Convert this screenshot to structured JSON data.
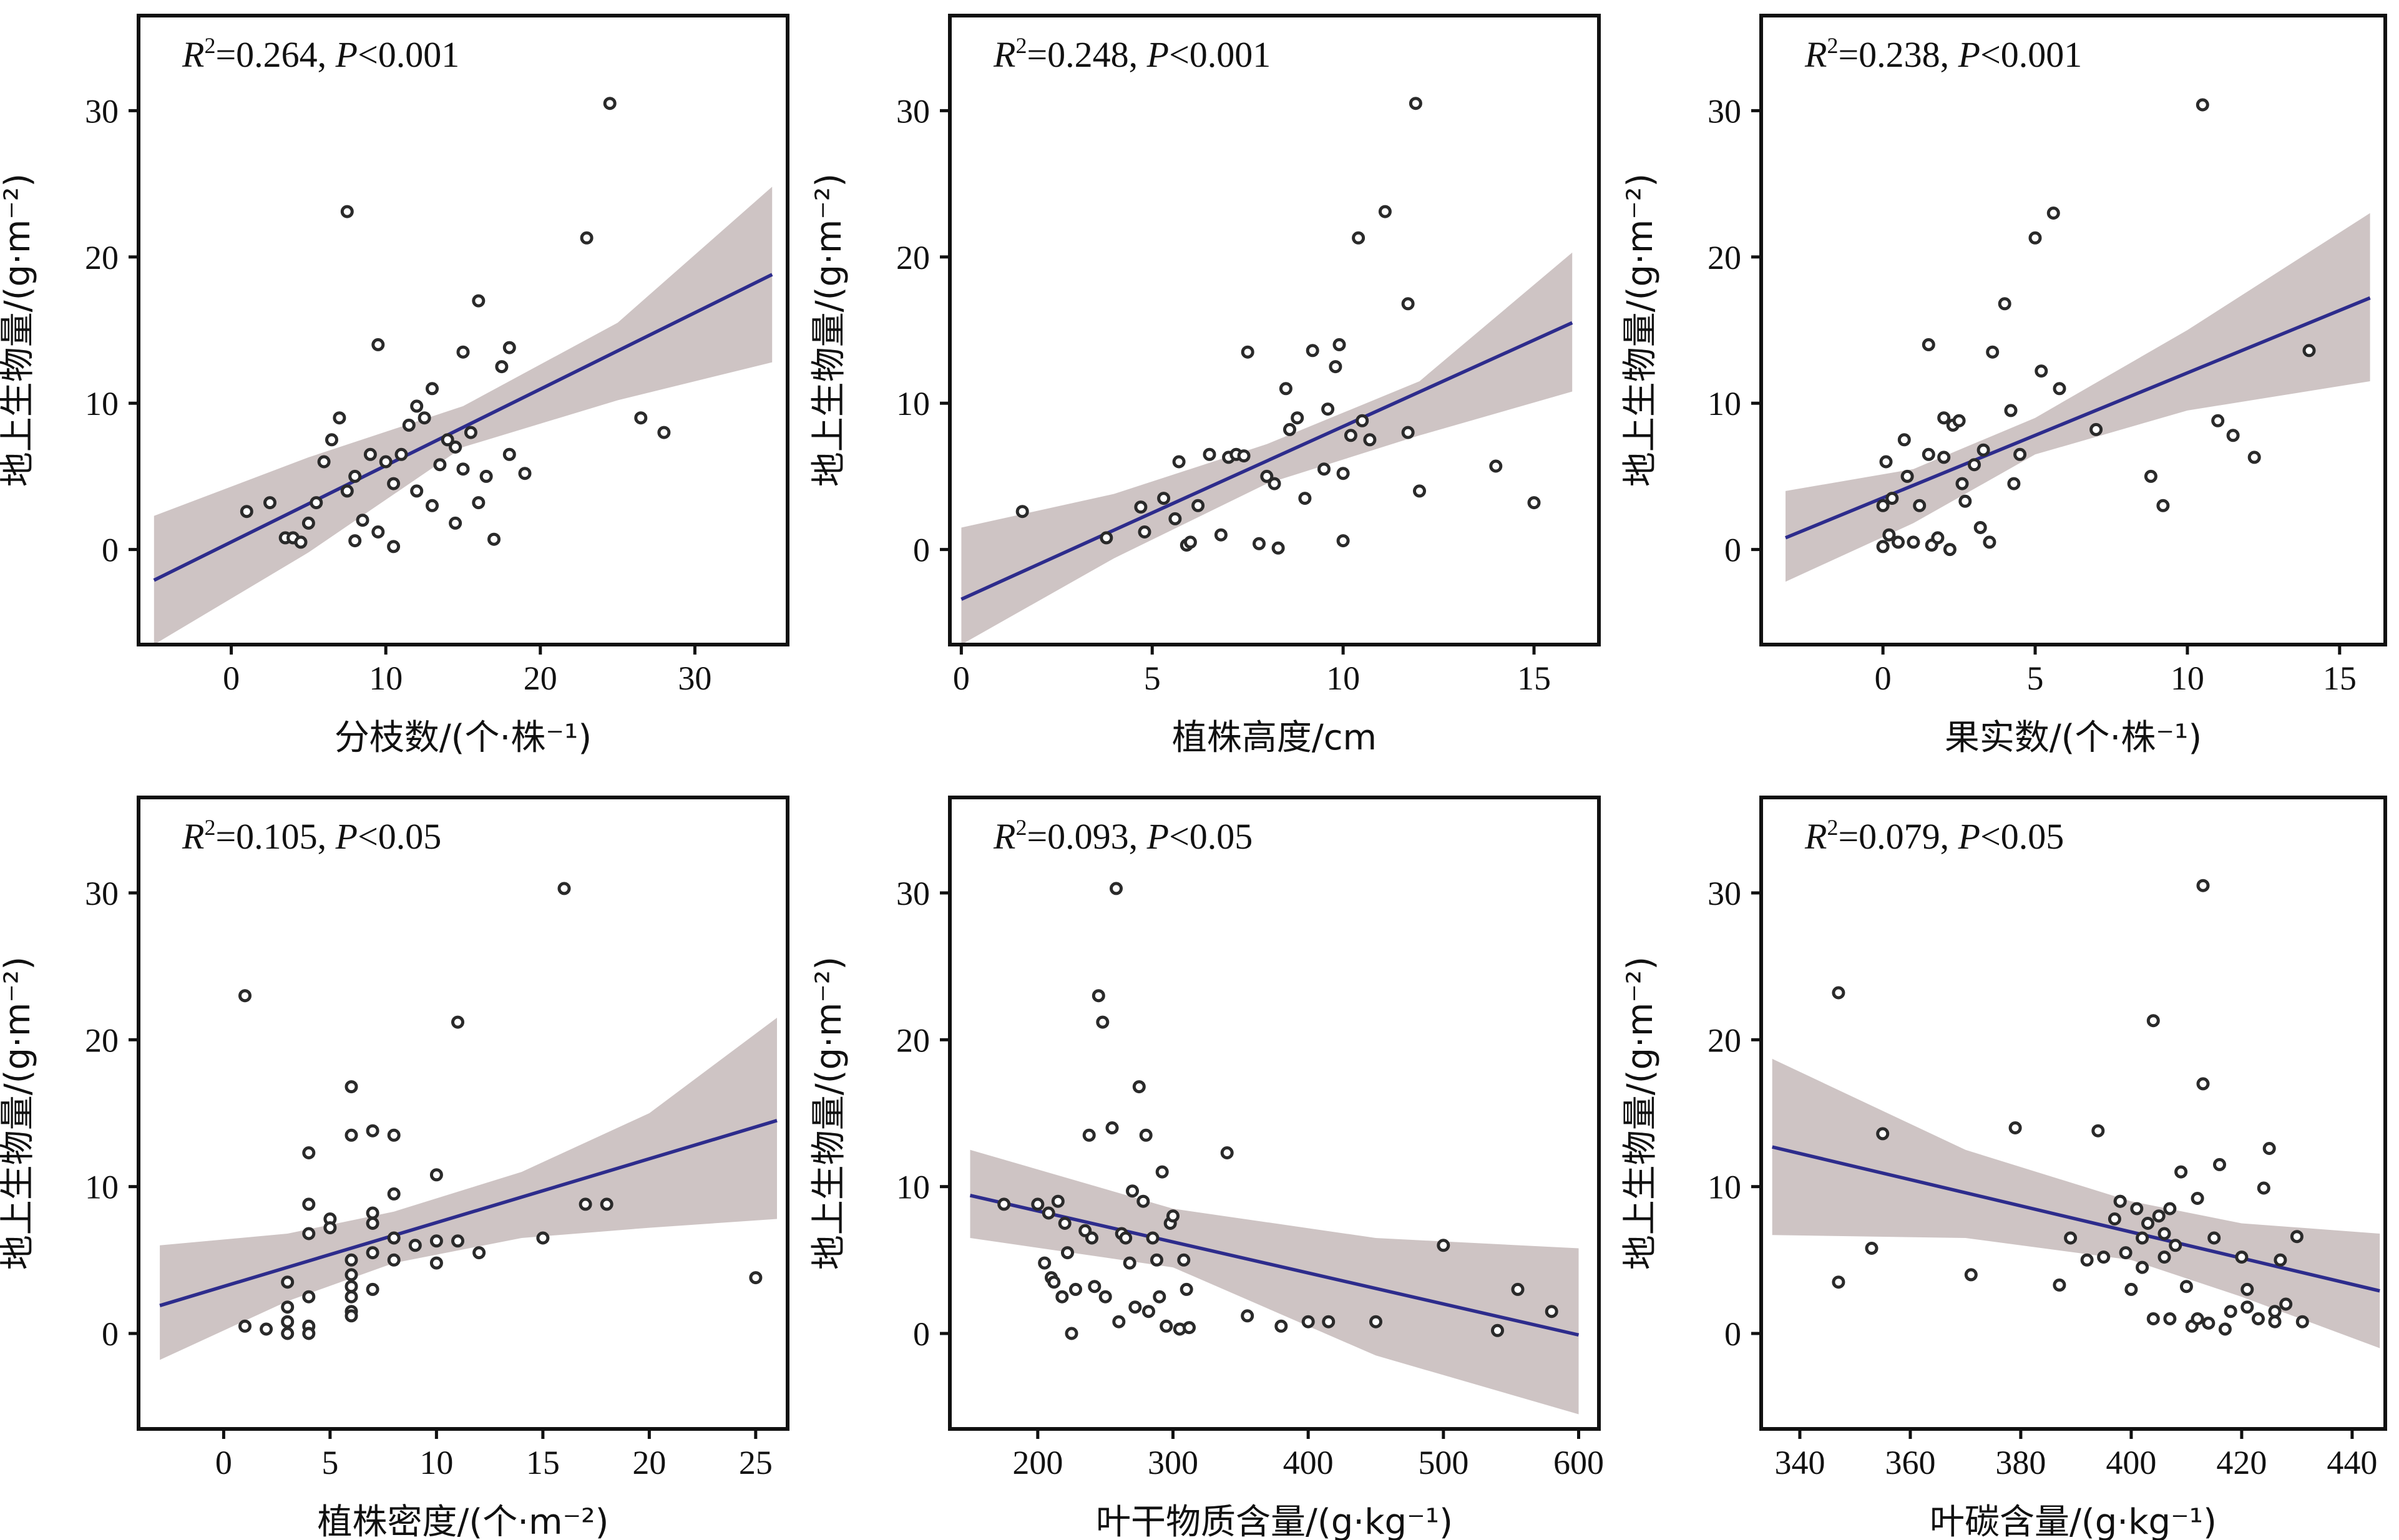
{
  "chart_data": [
    {
      "type": "scatter",
      "xlabel": "分枝数/(个·株⁻¹)",
      "ylabel": "地上生物量/(g·m⁻²)",
      "stat": {
        "r2": "R²=0.264,",
        "p": "P<0.001"
      },
      "xlim": [
        -6,
        36
      ],
      "ylim": [
        -6.5,
        36.5
      ],
      "xticks": [
        0,
        10,
        20,
        30
      ],
      "yticks": [
        0,
        10,
        20,
        30
      ],
      "fit": {
        "x": [
          -5,
          35
        ],
        "y": [
          -2.1,
          18.8
        ]
      },
      "band": {
        "x": [
          -5,
          5,
          15,
          25,
          35
        ],
        "upper": [
          2.3,
          6.3,
          9.8,
          15.5,
          24.8
        ],
        "lower": [
          -6.5,
          -0.2,
          7.0,
          10.2,
          12.8
        ]
      },
      "points": [
        [
          1,
          2.6
        ],
        [
          2.5,
          3.2
        ],
        [
          3.5,
          0.8
        ],
        [
          4,
          0.8
        ],
        [
          4.5,
          0.5
        ],
        [
          5,
          1.8
        ],
        [
          5.5,
          3.2
        ],
        [
          6,
          6
        ],
        [
          6.5,
          7.5
        ],
        [
          7,
          9
        ],
        [
          7.5,
          23.1
        ],
        [
          7.5,
          4
        ],
        [
          8,
          0.6
        ],
        [
          8,
          5
        ],
        [
          8.5,
          2
        ],
        [
          9,
          6.5
        ],
        [
          9.5,
          14
        ],
        [
          9.5,
          1.2
        ],
        [
          10,
          6
        ],
        [
          10.5,
          4.5
        ],
        [
          10.5,
          0.2
        ],
        [
          11,
          6.5
        ],
        [
          11.5,
          8.5
        ],
        [
          12,
          9.8
        ],
        [
          12,
          4
        ],
        [
          12.5,
          9
        ],
        [
          13,
          11
        ],
        [
          13,
          3
        ],
        [
          13.5,
          5.8
        ],
        [
          14,
          7.5
        ],
        [
          14.5,
          7
        ],
        [
          14.5,
          1.8
        ],
        [
          15,
          13.5
        ],
        [
          15,
          5.5
        ],
        [
          15.5,
          8
        ],
        [
          16,
          17
        ],
        [
          16,
          3.2
        ],
        [
          16.5,
          5
        ],
        [
          17,
          0.7
        ],
        [
          17.5,
          12.5
        ],
        [
          18,
          13.8
        ],
        [
          18,
          6.5
        ],
        [
          19,
          5.2
        ],
        [
          23,
          21.3
        ],
        [
          24.5,
          30.5
        ],
        [
          26.5,
          9
        ],
        [
          28,
          8
        ]
      ]
    },
    {
      "type": "scatter",
      "xlabel": "植株高度/cm",
      "ylabel": "地上生物量/(g·m⁻²)",
      "stat": {
        "r2": "R²=0.248,",
        "p": "P<0.001"
      },
      "xlim": [
        -0.3,
        16.7
      ],
      "ylim": [
        -6.5,
        36.5
      ],
      "xticks": [
        0,
        5,
        10,
        15
      ],
      "yticks": [
        0,
        10,
        20,
        30
      ],
      "fit": {
        "x": [
          0,
          16
        ],
        "y": [
          -3.4,
          15.5
        ]
      },
      "band": {
        "x": [
          0,
          4,
          8,
          12,
          16
        ],
        "upper": [
          1.5,
          3.8,
          7.2,
          11.5,
          20.3
        ],
        "lower": [
          -6.5,
          -0.6,
          4.5,
          7.8,
          10.8
        ]
      },
      "points": [
        [
          1.6,
          2.6
        ],
        [
          3.8,
          0.8
        ],
        [
          4.7,
          2.9
        ],
        [
          4.8,
          1.2
        ],
        [
          5.3,
          3.5
        ],
        [
          5.6,
          2.1
        ],
        [
          5.7,
          6
        ],
        [
          5.9,
          0.3
        ],
        [
          6,
          0.5
        ],
        [
          6.2,
          3
        ],
        [
          6.5,
          6.5
        ],
        [
          6.8,
          1
        ],
        [
          7,
          6.3
        ],
        [
          7.2,
          6.5
        ],
        [
          7.4,
          6.4
        ],
        [
          7.5,
          13.5
        ],
        [
          7.8,
          0.4
        ],
        [
          8,
          5
        ],
        [
          8.2,
          4.5
        ],
        [
          8.3,
          0.1
        ],
        [
          8.5,
          11
        ],
        [
          8.6,
          8.2
        ],
        [
          8.8,
          9
        ],
        [
          9,
          3.5
        ],
        [
          9.2,
          13.6
        ],
        [
          9.5,
          5.5
        ],
        [
          9.6,
          9.6
        ],
        [
          9.8,
          12.5
        ],
        [
          9.9,
          14
        ],
        [
          10,
          5.2
        ],
        [
          10,
          0.6
        ],
        [
          10.2,
          7.8
        ],
        [
          10.4,
          21.3
        ],
        [
          10.5,
          8.8
        ],
        [
          10.7,
          7.5
        ],
        [
          11.1,
          23.1
        ],
        [
          11.7,
          16.8
        ],
        [
          11.7,
          8
        ],
        [
          11.9,
          30.5
        ],
        [
          12,
          4
        ],
        [
          14,
          5.7
        ],
        [
          15,
          3.2
        ]
      ]
    },
    {
      "type": "scatter",
      "xlabel": "果实数/(个·株⁻¹)",
      "ylabel": "地上生物量/(g·m⁻²)",
      "stat": {
        "r2": "R²=0.238,",
        "p": "P<0.001"
      },
      "xlim": [
        -4,
        16.5
      ],
      "ylim": [
        -6.5,
        36.5
      ],
      "xticks": [
        0,
        5,
        10,
        15
      ],
      "yticks": [
        0,
        10,
        20,
        30
      ],
      "fit": {
        "x": [
          -3.2,
          16
        ],
        "y": [
          0.8,
          17.2
        ]
      },
      "band": {
        "x": [
          -3.2,
          1,
          5,
          10,
          16
        ],
        "upper": [
          4,
          5.5,
          9,
          15,
          23
        ],
        "lower": [
          -2.2,
          1.8,
          6.5,
          9.5,
          11.5
        ]
      },
      "points": [
        [
          0,
          3
        ],
        [
          0,
          0.2
        ],
        [
          0.1,
          6
        ],
        [
          0.2,
          1
        ],
        [
          0.3,
          3.5
        ],
        [
          0.5,
          0.5
        ],
        [
          0.7,
          7.5
        ],
        [
          0.8,
          5
        ],
        [
          1,
          0.5
        ],
        [
          1.2,
          3
        ],
        [
          1.5,
          6.5
        ],
        [
          1.5,
          14
        ],
        [
          1.6,
          0.3
        ],
        [
          1.8,
          0.8
        ],
        [
          2,
          9
        ],
        [
          2,
          6.3
        ],
        [
          2.2,
          0
        ],
        [
          2.3,
          8.5
        ],
        [
          2.5,
          8.8
        ],
        [
          2.6,
          4.5
        ],
        [
          2.7,
          3.3
        ],
        [
          3,
          5.8
        ],
        [
          3.2,
          1.5
        ],
        [
          3.3,
          6.8
        ],
        [
          3.5,
          0.5
        ],
        [
          3.6,
          13.5
        ],
        [
          4,
          16.8
        ],
        [
          4.2,
          9.5
        ],
        [
          4.3,
          4.5
        ],
        [
          4.5,
          6.5
        ],
        [
          5,
          21.3
        ],
        [
          5.2,
          12.2
        ],
        [
          5.6,
          23
        ],
        [
          5.8,
          11
        ],
        [
          7,
          8.2
        ],
        [
          8.8,
          5
        ],
        [
          9.2,
          3
        ],
        [
          10.5,
          30.4
        ],
        [
          11,
          8.8
        ],
        [
          11.5,
          7.8
        ],
        [
          12.2,
          6.3
        ],
        [
          14,
          13.6
        ]
      ]
    },
    {
      "type": "scatter",
      "xlabel": "植株密度/(个·m⁻²)",
      "ylabel": "地上生物量/(g·m⁻²)",
      "stat": {
        "r2": "R²=0.105,",
        "p": "P<0.05"
      },
      "xlim": [
        -4,
        26.5
      ],
      "ylim": [
        -6.5,
        36.5
      ],
      "xticks": [
        0,
        5,
        10,
        15,
        20,
        25
      ],
      "yticks": [
        0,
        10,
        20,
        30
      ],
      "fit": {
        "x": [
          -3,
          26
        ],
        "y": [
          1.9,
          14.5
        ]
      },
      "band": {
        "x": [
          -3,
          3,
          8,
          14,
          20,
          26
        ],
        "upper": [
          6,
          6.8,
          8.3,
          11,
          15,
          21.5
        ],
        "lower": [
          -1.8,
          2.2,
          4.8,
          6.5,
          7.2,
          7.8
        ]
      },
      "points": [
        [
          1,
          23
        ],
        [
          1,
          0.5
        ],
        [
          2,
          0.3
        ],
        [
          3,
          3.5
        ],
        [
          3,
          1.8
        ],
        [
          3,
          0.8
        ],
        [
          3,
          0
        ],
        [
          4,
          12.3
        ],
        [
          4,
          8.8
        ],
        [
          4,
          6.8
        ],
        [
          4,
          2.5
        ],
        [
          4,
          0.5
        ],
        [
          4,
          0
        ],
        [
          5,
          7.8
        ],
        [
          5,
          7.2
        ],
        [
          6,
          16.8
        ],
        [
          6,
          13.5
        ],
        [
          6,
          5
        ],
        [
          6,
          4
        ],
        [
          6,
          3.2
        ],
        [
          6,
          2.5
        ],
        [
          6,
          1.5
        ],
        [
          6,
          1.2
        ],
        [
          7,
          13.8
        ],
        [
          7,
          8.2
        ],
        [
          7,
          7.5
        ],
        [
          7,
          5.5
        ],
        [
          7,
          3
        ],
        [
          8,
          13.5
        ],
        [
          8,
          9.5
        ],
        [
          8,
          6.5
        ],
        [
          8,
          5
        ],
        [
          9,
          6
        ],
        [
          10,
          10.8
        ],
        [
          10,
          6.3
        ],
        [
          10,
          4.8
        ],
        [
          11,
          21.2
        ],
        [
          11,
          6.3
        ],
        [
          12,
          5.5
        ],
        [
          15,
          6.5
        ],
        [
          16,
          30.3
        ],
        [
          17,
          8.8
        ],
        [
          18,
          8.8
        ],
        [
          25,
          3.8
        ]
      ]
    },
    {
      "type": "scatter",
      "xlabel": "叶干物质含量/(g·kg⁻¹)",
      "ylabel": "地上生物量/(g·m⁻²)",
      "stat": {
        "r2": "R²=0.093,",
        "p": "P<0.05"
      },
      "xlim": [
        135,
        615
      ],
      "ylim": [
        -6.5,
        36.5
      ],
      "xticks": [
        200,
        300,
        400,
        500,
        600
      ],
      "yticks": [
        0,
        10,
        20,
        30
      ],
      "fit": {
        "x": [
          150,
          600
        ],
        "y": [
          9.4,
          -0.1
        ]
      },
      "band": {
        "x": [
          150,
          300,
          450,
          600
        ],
        "upper": [
          12.5,
          8.5,
          6.5,
          5.8
        ],
        "lower": [
          6.5,
          4.5,
          -1.5,
          -5.5
        ]
      },
      "points": [
        [
          175,
          8.8
        ],
        [
          200,
          8.8
        ],
        [
          205,
          4.8
        ],
        [
          208,
          8.2
        ],
        [
          210,
          3.8
        ],
        [
          212,
          3.5
        ],
        [
          215,
          9
        ],
        [
          218,
          2.5
        ],
        [
          220,
          7.5
        ],
        [
          222,
          5.5
        ],
        [
          225,
          0
        ],
        [
          228,
          3
        ],
        [
          235,
          7
        ],
        [
          238,
          13.5
        ],
        [
          240,
          6.5
        ],
        [
          242,
          3.2
        ],
        [
          245,
          23
        ],
        [
          248,
          21.2
        ],
        [
          250,
          2.5
        ],
        [
          255,
          14
        ],
        [
          258,
          30.3
        ],
        [
          260,
          0.8
        ],
        [
          262,
          6.8
        ],
        [
          265,
          6.5
        ],
        [
          268,
          4.8
        ],
        [
          270,
          9.7
        ],
        [
          272,
          1.8
        ],
        [
          275,
          16.8
        ],
        [
          278,
          9
        ],
        [
          280,
          13.5
        ],
        [
          282,
          1.5
        ],
        [
          285,
          6.5
        ],
        [
          288,
          5
        ],
        [
          290,
          2.5
        ],
        [
          292,
          11
        ],
        [
          295,
          0.5
        ],
        [
          298,
          7.5
        ],
        [
          300,
          8
        ],
        [
          305,
          0.3
        ],
        [
          308,
          5
        ],
        [
          310,
          3
        ],
        [
          312,
          0.4
        ],
        [
          340,
          12.3
        ],
        [
          355,
          1.2
        ],
        [
          380,
          0.5
        ],
        [
          400,
          0.8
        ],
        [
          415,
          0.8
        ],
        [
          450,
          0.8
        ],
        [
          500,
          6
        ],
        [
          540,
          0.2
        ],
        [
          555,
          3
        ],
        [
          580,
          1.5
        ]
      ]
    },
    {
      "type": "scatter",
      "xlabel": "叶碳含量/(g·kg⁻¹)",
      "ylabel": "地上生物量/(g·m⁻²)",
      "stat": {
        "r2": "R²=0.079,",
        "p": "P<0.05"
      },
      "xlim": [
        333,
        446
      ],
      "ylim": [
        -6.5,
        36.5
      ],
      "xticks": [
        340,
        360,
        380,
        400,
        420,
        440
      ],
      "yticks": [
        0,
        10,
        20,
        30
      ],
      "fit": {
        "x": [
          335,
          445
        ],
        "y": [
          12.7,
          2.9
        ]
      },
      "band": {
        "x": [
          335,
          370,
          400,
          420,
          445
        ],
        "upper": [
          18.7,
          12.5,
          9,
          7.5,
          6.8
        ],
        "lower": [
          6.7,
          6.5,
          5,
          2.5,
          -1
        ]
      },
      "points": [
        [
          347,
          23.2
        ],
        [
          347,
          3.5
        ],
        [
          353,
          5.8
        ],
        [
          355,
          13.6
        ],
        [
          371,
          4
        ],
        [
          379,
          14
        ],
        [
          387,
          3.3
        ],
        [
          389,
          6.5
        ],
        [
          392,
          5
        ],
        [
          394,
          13.8
        ],
        [
          395,
          5.2
        ],
        [
          397,
          7.8
        ],
        [
          398,
          9
        ],
        [
          398,
          9
        ],
        [
          399,
          5.5
        ],
        [
          400,
          3
        ],
        [
          401,
          8.5
        ],
        [
          402,
          6.5
        ],
        [
          402,
          4.5
        ],
        [
          403,
          7.5
        ],
        [
          404,
          21.3
        ],
        [
          404,
          1
        ],
        [
          405,
          8
        ],
        [
          406,
          5.2
        ],
        [
          406,
          6.8
        ],
        [
          407,
          8.5
        ],
        [
          407,
          1
        ],
        [
          408,
          6
        ],
        [
          409,
          11
        ],
        [
          410,
          3.2
        ],
        [
          411,
          0.5
        ],
        [
          412,
          9.2
        ],
        [
          412,
          1
        ],
        [
          413,
          17
        ],
        [
          413,
          30.5
        ],
        [
          414,
          0.7
        ],
        [
          415,
          6.5
        ],
        [
          416,
          11.5
        ],
        [
          417,
          0.3
        ],
        [
          418,
          1.5
        ],
        [
          420,
          5.2
        ],
        [
          421,
          3
        ],
        [
          421,
          1.8
        ],
        [
          423,
          1
        ],
        [
          424,
          9.9
        ],
        [
          425,
          12.6
        ],
        [
          426,
          0.8
        ],
        [
          426,
          1.5
        ],
        [
          427,
          5
        ],
        [
          428,
          2
        ],
        [
          430,
          6.6
        ],
        [
          431,
          0.8
        ]
      ]
    }
  ]
}
